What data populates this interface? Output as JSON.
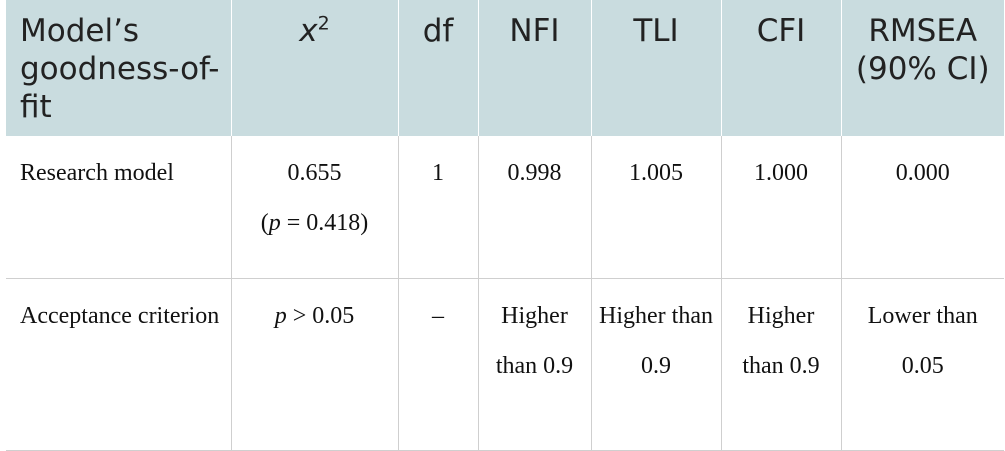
{
  "table": {
    "headers": {
      "col0": "Model’s goodness-of-fit",
      "chi_base": "x",
      "chi_sup": "2",
      "df": "df",
      "nfi": "NFI",
      "tli": "TLI",
      "cfi": "CFI",
      "rmsea": "RMSEA (90% CI)"
    },
    "rows": [
      {
        "label": "Research model",
        "chi_value": "0.655",
        "chi_p_open": "(",
        "chi_p_var": "p",
        "chi_p_rest": " = 0.418)",
        "df": "1",
        "nfi": "0.998",
        "tli": "1.005",
        "cfi": "1.000",
        "rmsea": "0.000"
      },
      {
        "label": "Acceptance criterion",
        "chi_p_var": "p",
        "chi_p_rest": " > 0.05",
        "df": "–",
        "nfi": "Higher than 0.9",
        "tli": "Higher than 0.9",
        "cfi": "Higher than 0.9",
        "rmsea": "Lower than 0.05"
      }
    ]
  },
  "colors": {
    "header_background": "#c9dcdf",
    "rule": "#cfcfcf"
  }
}
